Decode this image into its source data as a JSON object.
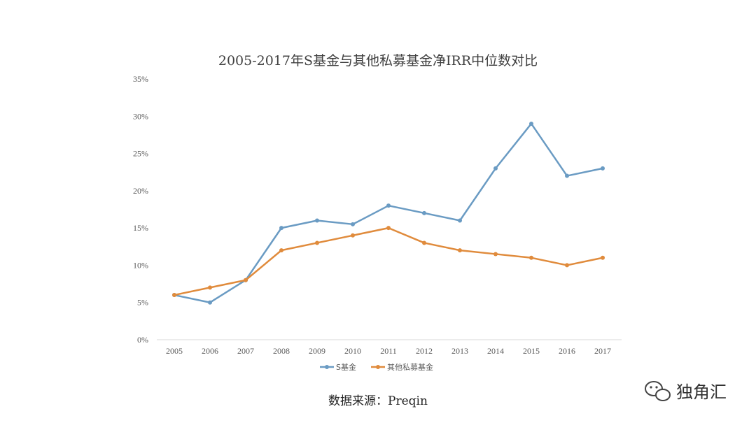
{
  "chart_data": {
    "type": "line",
    "title": "2005-2017年S基金与其他私募基金净IRR中位数对比",
    "categories": [
      "2005",
      "2006",
      "2007",
      "2008",
      "2009",
      "2010",
      "2011",
      "2012",
      "2013",
      "2014",
      "2015",
      "2016",
      "2017"
    ],
    "series": [
      {
        "name": "S基金",
        "color": "#6a9bc3",
        "values": [
          6,
          5,
          8,
          15,
          16,
          15.5,
          18,
          17,
          16,
          23,
          29,
          22,
          23
        ]
      },
      {
        "name": "其他私募基金",
        "color": "#e08b3c",
        "values": [
          6,
          7,
          8,
          12,
          13,
          14,
          15,
          13,
          12,
          11.5,
          11,
          10,
          11
        ]
      }
    ],
    "ylim": [
      0,
      35
    ],
    "yticks": [
      "0%",
      "5%",
      "10%",
      "15%",
      "20%",
      "25%",
      "30%",
      "35%"
    ],
    "grid": false,
    "legend": "bottom"
  },
  "source_label": "数据来源：Preqin",
  "watermark": {
    "icon": "wechat-icon",
    "text": "独角汇"
  }
}
